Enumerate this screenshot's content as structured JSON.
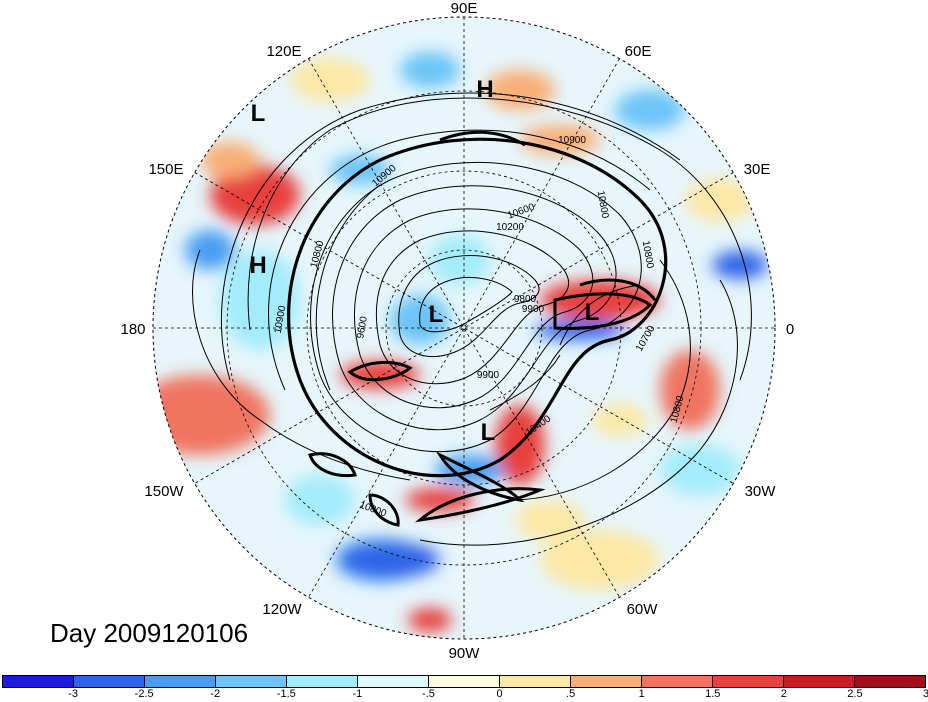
{
  "title": "Day 2009120106",
  "longitude_labels": [
    "90E",
    "60E",
    "30E",
    "0",
    "30W",
    "60W",
    "90W",
    "120W",
    "150W",
    "180",
    "150E",
    "120E"
  ],
  "pressure_centers": [
    {
      "id": "H-asia",
      "label": "H"
    },
    {
      "id": "L-pacific-nw",
      "label": "L"
    },
    {
      "id": "H-pacific",
      "label": "H"
    },
    {
      "id": "L-arctic",
      "label": "L"
    },
    {
      "id": "L-atlantic",
      "label": "L"
    },
    {
      "id": "L-hudson",
      "label": "L"
    }
  ],
  "contour_labels": [
    "10900",
    "10800",
    "10800",
    "10200",
    "10600",
    "9900",
    "9800",
    "9600",
    "9900",
    "10400",
    "10700",
    "10800",
    "10900",
    "10900",
    "10800",
    "10800"
  ],
  "colorbar": {
    "colors": [
      "#1a1ae0",
      "#2e64e8",
      "#4a9ef2",
      "#6cc4f7",
      "#a2ecfb",
      "#e0fbfe",
      "#fffbe0",
      "#fde8a6",
      "#f9ae76",
      "#f07460",
      "#e8403c",
      "#cc1a24",
      "#a0101c"
    ],
    "tick_labels": [
      "-3",
      "-2.5",
      "-2",
      "-1.5",
      "-1",
      "-.5",
      "0",
      ".5",
      "1",
      "1.5",
      "2",
      "2.5",
      "3"
    ]
  }
}
